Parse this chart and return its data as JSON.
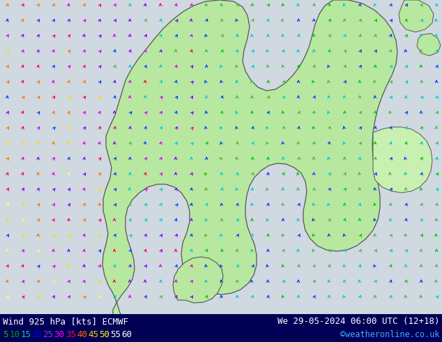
{
  "title_left": "Wind 925 hPa [kts] ECMWF",
  "title_right": "We 29-05-2024 06:00 UTC (12+18)",
  "credit": "©weatheronline.co.uk",
  "legend_values": [
    "5",
    "10",
    "15",
    "20",
    "25",
    "30",
    "35",
    "40",
    "45",
    "50",
    "55",
    "60"
  ],
  "legend_colors": [
    "#00cc00",
    "#009900",
    "#00cccc",
    "#0000ff",
    "#9933ff",
    "#ff00ff",
    "#ff0066",
    "#ff6600",
    "#ffcc00",
    "#ffff00",
    "#ffffff",
    "#ffffff"
  ],
  "sea_color": "#d0d8e0",
  "land_color": "#b8e8a0",
  "land_color2": "#c8f0b0",
  "coast_color": "#555555",
  "bottom_bar_color": "#000055",
  "bottom_text_color": "#ffffff",
  "figsize": [
    6.34,
    4.9
  ],
  "dpi": 100,
  "wind_colors": {
    "5": "#00cc00",
    "10": "#44cc44",
    "15": "#00cccc",
    "20": "#0000ff",
    "25": "#6600ff",
    "30": "#cc00ff",
    "35": "#ff0099",
    "40": "#ff6600",
    "45": "#ffcc00",
    "50": "#ffff00",
    "55": "#ffffff",
    "60": "#ffffff"
  }
}
